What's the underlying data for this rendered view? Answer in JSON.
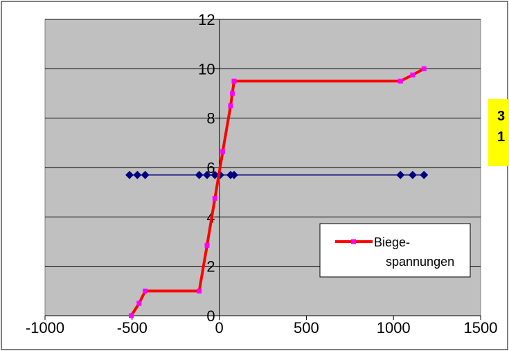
{
  "chart_data": {
    "type": "line",
    "title": "",
    "xlabel": "",
    "ylabel": "",
    "xlim": [
      -1000,
      1500
    ],
    "ylim": [
      0,
      12
    ],
    "x_ticks": [
      -1000,
      -500,
      0,
      500,
      1000,
      1500
    ],
    "y_ticks": [
      0,
      2,
      4,
      6,
      8,
      10,
      12
    ],
    "x_tick_labels": [
      "-1000",
      "-500",
      "0",
      "500",
      "1000",
      "1500"
    ],
    "y_tick_labels": [
      "0",
      "2",
      "4",
      "6",
      "8",
      "10",
      "12"
    ],
    "grid": "horizontal",
    "plot_background": "#c0c0c0",
    "legend_placement": "lower-right",
    "legend_entries": [
      "Biege-",
      "spannungen"
    ],
    "series": [
      {
        "name": "Biege-spannungen",
        "color": "#ff0000",
        "marker_color": "#ff00ff",
        "marker": "square",
        "points": [
          [
            -505,
            0
          ],
          [
            -460,
            0.5
          ],
          [
            -425,
            1
          ],
          [
            -115,
            1
          ],
          [
            -70,
            2.85
          ],
          [
            -25,
            4.75
          ],
          [
            20,
            6.65
          ],
          [
            65,
            8.5
          ],
          [
            75,
            9
          ],
          [
            85,
            9.5
          ],
          [
            1040,
            9.5
          ],
          [
            1110,
            9.75
          ],
          [
            1175,
            10
          ]
        ]
      },
      {
        "name": "",
        "color": "#000080",
        "marker_color": "#000080",
        "marker": "diamond",
        "points": [
          [
            -515,
            5.7
          ],
          [
            -470,
            5.7
          ],
          [
            -425,
            5.7
          ],
          [
            -115,
            5.7
          ],
          [
            -70,
            5.7
          ],
          [
            -25,
            5.7
          ],
          [
            5,
            5.7
          ],
          [
            65,
            5.7
          ],
          [
            85,
            5.7
          ],
          [
            1040,
            5.7
          ],
          [
            1110,
            5.7
          ],
          [
            1175,
            5.7
          ]
        ]
      }
    ]
  },
  "note": {
    "line1": "3",
    "line2": "1"
  }
}
